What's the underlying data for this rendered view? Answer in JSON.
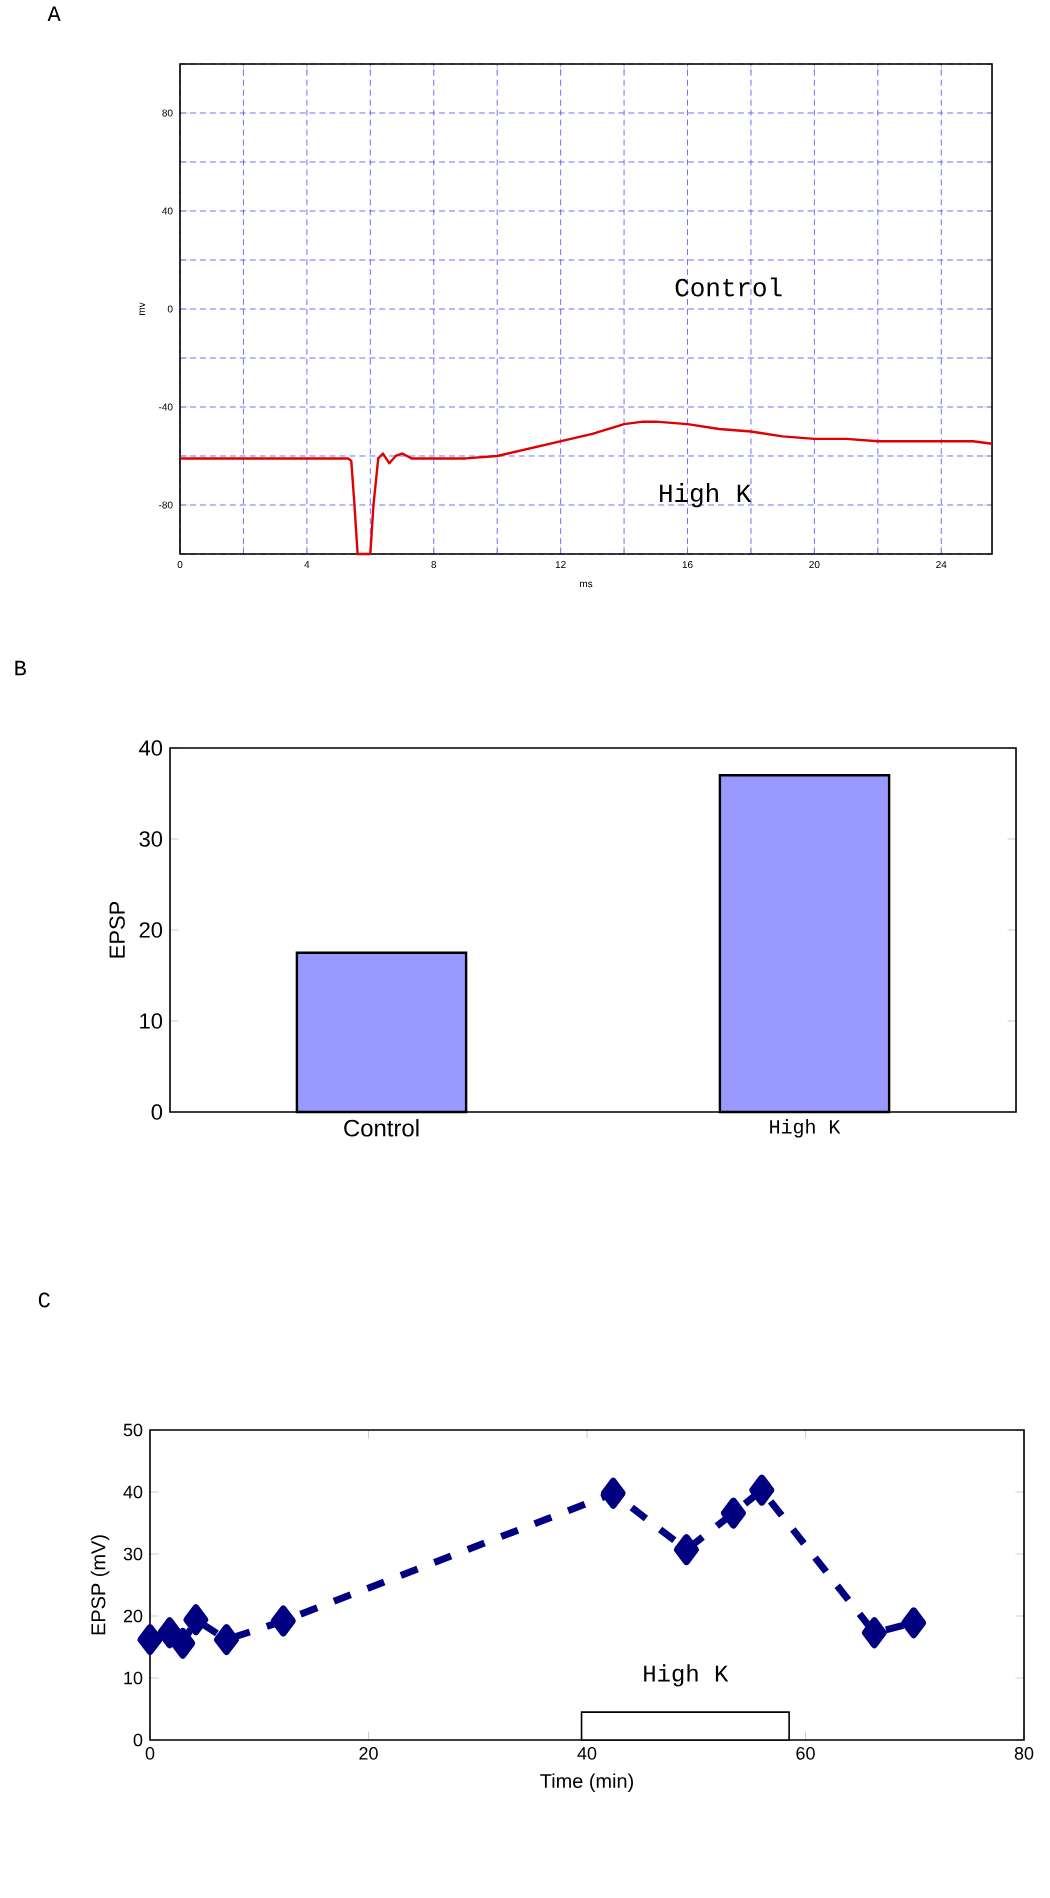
{
  "chart_data": [
    {
      "type": "line",
      "title": "A",
      "xlabel": "ms",
      "ylabel": "mv",
      "annotations": [
        "Control",
        "High K"
      ],
      "series": [
        {
          "color": "#e00000",
          "x": [
            0,
            2,
            4,
            5.3,
            5.4,
            5.5,
            5.6,
            6.0,
            6.1,
            6.25,
            6.4,
            6.6,
            6.8,
            7.0,
            7.3,
            8,
            9,
            10,
            11,
            12,
            13,
            14,
            14.6,
            15,
            16,
            17,
            18,
            19,
            20,
            21,
            22,
            23,
            24,
            25,
            25.6
          ],
          "values": [
            -61,
            -61,
            -61,
            -61,
            -62,
            -80,
            -100,
            -100,
            -80,
            -61,
            -59,
            -63,
            -60,
            -59,
            -61,
            -61,
            -61,
            -60,
            -57,
            -54,
            -51,
            -47,
            -46,
            -46,
            -47,
            -49,
            -50,
            -52,
            -53,
            -53,
            -54,
            -54,
            -54,
            -54,
            -55
          ]
        }
      ],
      "xlim": [
        0,
        25.6
      ],
      "ylim": [
        -100,
        100
      ],
      "xticks": [
        0,
        {
          "value": 2,
          "label": null
        },
        4,
        {
          "value": 6,
          "label": null
        },
        8,
        {
          "value": 10,
          "label": null
        },
        12,
        {
          "value": 14,
          "label": null
        },
        16,
        {
          "value": 18,
          "label": null
        },
        20,
        {
          "value": 22,
          "label": null
        },
        24
      ],
      "yticks": [
        {
          "value": -100,
          "label": null
        },
        -80,
        {
          "value": -60,
          "label": null
        },
        -40,
        {
          "value": -20,
          "label": null
        },
        0,
        {
          "value": 20,
          "label": null
        },
        40,
        {
          "value": 60,
          "label": null
        },
        80,
        {
          "value": 100,
          "label": null
        }
      ],
      "grid": true,
      "marker": "none",
      "line_style": "solid"
    },
    {
      "type": "bar",
      "title": "B",
      "ylabel": "EPSP",
      "categories": [
        "Control",
        "High K"
      ],
      "values": [
        17.5,
        37
      ],
      "color": "#9999ff",
      "ylim": [
        0,
        40
      ],
      "yticks": [
        0,
        10,
        20,
        30,
        40
      ],
      "grid": false
    },
    {
      "type": "line",
      "title": "C",
      "xlabel": "Time (min)",
      "ylabel": "EPSP (mV)",
      "series": [
        {
          "color": "#000080",
          "x": [
            0,
            1.8,
            3,
            4.2,
            7,
            12.2,
            42.4,
            49.1,
            53.4,
            56,
            66.3,
            69.9
          ],
          "values": [
            16.2,
            17.3,
            15.6,
            19.4,
            16.2,
            19.2,
            39.8,
            30.7,
            36.6,
            40.3,
            17.3,
            18.9
          ]
        }
      ],
      "xlim": [
        0,
        80
      ],
      "ylim": [
        0,
        50
      ],
      "xticks": [
        0,
        20,
        40,
        60,
        80
      ],
      "yticks": [
        0,
        10,
        20,
        30,
        40,
        50
      ],
      "bands": [
        {
          "axis": "x",
          "from": 39.5,
          "to": 58.5,
          "label": "High K"
        }
      ],
      "grid": false,
      "marker": "diamond",
      "line_style": "dashed"
    }
  ]
}
